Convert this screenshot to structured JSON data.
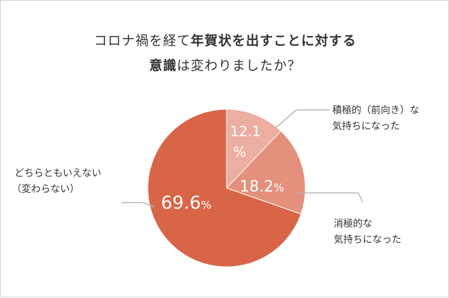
{
  "chart_data": {
    "type": "pie",
    "title_line1": {
      "normal_a": "コロナ禍を経て",
      "bold": "年賀状を出すことに対する",
      "normal_b": ""
    },
    "title_line2": {
      "bold": "意識",
      "normal": "は変わりましたか？"
    },
    "slices": [
      {
        "label_lines": [
          "積極的（前向き）な",
          "気持ちになった"
        ],
        "value": 12.1,
        "value_display": "12.1",
        "unit": "%",
        "color": "#ebaea0"
      },
      {
        "label_lines": [
          "消極的な",
          "気持ちになった"
        ],
        "value": 18.2,
        "value_display": "18.2",
        "unit": "%",
        "color": "#e3917c"
      },
      {
        "label_lines": [
          "どちらともいえない",
          "（変わらない）"
        ],
        "value": 69.6,
        "value_display": "69.6",
        "unit": "%",
        "color": "#d86548"
      }
    ],
    "start": "top",
    "direction": "clockwise"
  }
}
